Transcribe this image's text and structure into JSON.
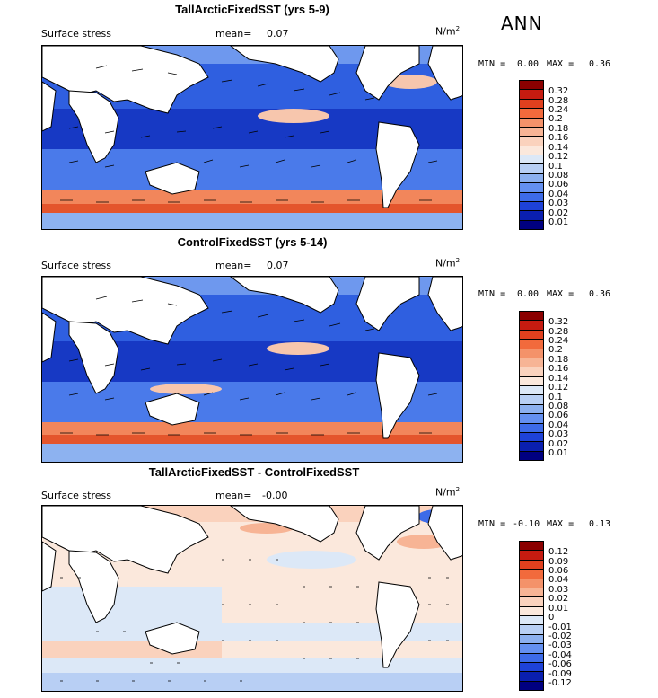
{
  "season": "ANN",
  "panels": [
    {
      "title": "TallArcticFixedSST (yrs 5-9)",
      "variable": "Surface stress",
      "mean_label": "mean=",
      "mean_value": "0.07",
      "units": "N/m",
      "units_exp": "2",
      "min_label": "MIN =",
      "min_value": "0.00",
      "max_label": "MAX =",
      "max_value": "0.36",
      "colorbar": {
        "labels": [
          "0.32",
          "0.28",
          "0.24",
          "0.2",
          "0.18",
          "0.16",
          "0.14",
          "0.12",
          "0.1",
          "0.08",
          "0.06",
          "0.04",
          "0.03",
          "0.02",
          "0.01"
        ],
        "colors": [
          "#8b0000",
          "#c51b10",
          "#e0401e",
          "#f26a3c",
          "#f4926a",
          "#f7b495",
          "#fad2bd",
          "#fbe8dc",
          "#dce8f7",
          "#b8cff4",
          "#8cb0ef",
          "#6490f0",
          "#3d6be8",
          "#1e42d8",
          "#0a1fb0",
          "#000080"
        ]
      }
    },
    {
      "title": "ControlFixedSST (yrs 5-14)",
      "variable": "Surface stress",
      "mean_label": "mean=",
      "mean_value": "0.07",
      "units": "N/m",
      "units_exp": "2",
      "min_label": "MIN =",
      "min_value": "0.00",
      "max_label": "MAX =",
      "max_value": "0.36",
      "colorbar": {
        "labels": [
          "0.32",
          "0.28",
          "0.24",
          "0.2",
          "0.18",
          "0.16",
          "0.14",
          "0.12",
          "0.1",
          "0.08",
          "0.06",
          "0.04",
          "0.03",
          "0.02",
          "0.01"
        ],
        "colors": [
          "#8b0000",
          "#c51b10",
          "#e0401e",
          "#f26a3c",
          "#f4926a",
          "#f7b495",
          "#fad2bd",
          "#fbe8dc",
          "#dce8f7",
          "#b8cff4",
          "#8cb0ef",
          "#6490f0",
          "#3d6be8",
          "#1e42d8",
          "#0a1fb0",
          "#000080"
        ]
      }
    },
    {
      "title": "TallArcticFixedSST - ControlFixedSST",
      "variable": "Surface stress",
      "mean_label": "mean=",
      "mean_value": "-0.00",
      "units": "N/m",
      "units_exp": "2",
      "min_label": "MIN =",
      "min_value": "-0.10",
      "max_label": "MAX =",
      "max_value": "0.13",
      "colorbar": {
        "labels": [
          "0.12",
          "0.09",
          "0.06",
          "0.04",
          "0.03",
          "0.02",
          "0.01",
          "0",
          "-0.01",
          "-0.02",
          "-0.03",
          "-0.04",
          "-0.06",
          "-0.09",
          "-0.12"
        ],
        "colors": [
          "#8b0000",
          "#c51b10",
          "#e0401e",
          "#f26a3c",
          "#f4926a",
          "#f7b495",
          "#fad2bd",
          "#fbe8dc",
          "#dce8f7",
          "#b8cff4",
          "#8cb0ef",
          "#6490f0",
          "#3d6be8",
          "#1e42d8",
          "#0a1fb0",
          "#000080"
        ]
      }
    }
  ]
}
